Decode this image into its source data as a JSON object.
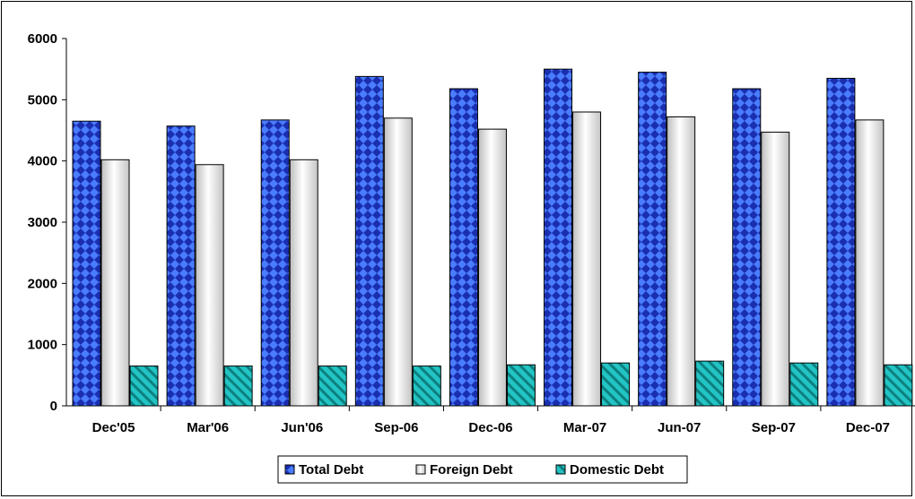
{
  "chart_data": {
    "type": "bar",
    "title": "",
    "xlabel": "",
    "ylabel": "",
    "categories": [
      "Dec'05",
      "Mar'06",
      "Jun'06",
      "Sep-06",
      "Dec-06",
      "Mar-07",
      "Jun-07",
      "Sep-07",
      "Dec-07"
    ],
    "series": [
      {
        "name": "Total Debt",
        "values": [
          4650,
          4570,
          4670,
          5380,
          5180,
          5500,
          5450,
          5180,
          5350
        ],
        "color": "#2040d8"
      },
      {
        "name": "Foreign Debt",
        "values": [
          4020,
          3940,
          4020,
          4700,
          4520,
          4800,
          4720,
          4470,
          4670
        ],
        "color": "#e6e6e6"
      },
      {
        "name": "Domestic Debt",
        "values": [
          650,
          650,
          650,
          650,
          670,
          700,
          730,
          700,
          670
        ],
        "color": "#20b8b8"
      }
    ],
    "ylim": [
      0,
      6000
    ],
    "yticks": [
      0,
      1000,
      2000,
      3000,
      4000,
      5000,
      6000
    ],
    "grid": false,
    "legend_position": "bottom"
  }
}
